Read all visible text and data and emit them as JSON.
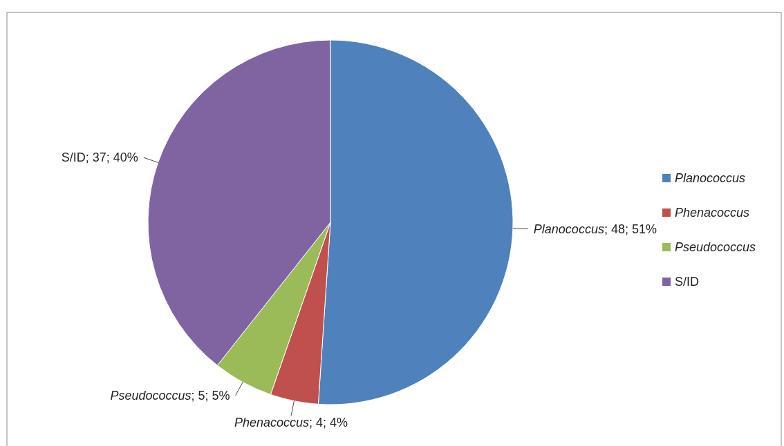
{
  "chart_data": {
    "type": "pie",
    "categories": [
      "Planococcus",
      "Phenacoccus",
      "Pseudococcus",
      "S/ID"
    ],
    "values": [
      48,
      4,
      5,
      37
    ],
    "colors": [
      "#4f81bd",
      "#c0504d",
      "#9bbb59",
      "#8064a2"
    ],
    "value_labels": [
      "; 48; 51%",
      "; 4; 4%",
      "; 5; 5%",
      "; 37; 40%"
    ],
    "legend": "right"
  }
}
